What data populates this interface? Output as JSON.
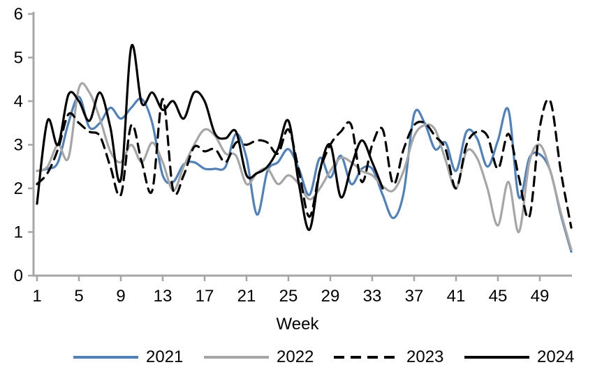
{
  "chart_data": {
    "type": "line",
    "title": "",
    "xlabel": "Week",
    "ylabel": "",
    "xlim": [
      1,
      52
    ],
    "ylim": [
      0,
      6
    ],
    "xticks": [
      1,
      5,
      9,
      13,
      17,
      21,
      25,
      29,
      33,
      37,
      41,
      45,
      49
    ],
    "yticks": [
      0,
      1,
      2,
      3,
      4,
      5,
      6
    ],
    "grid": false,
    "legend_position": "bottom",
    "axis_color": "#A6A6A6",
    "text_color": "#000000",
    "x": [
      1,
      2,
      3,
      4,
      5,
      6,
      7,
      8,
      9,
      10,
      11,
      12,
      13,
      14,
      15,
      16,
      17,
      18,
      19,
      20,
      21,
      22,
      23,
      24,
      25,
      26,
      27,
      28,
      29,
      30,
      31,
      32,
      33,
      34,
      35,
      36,
      37,
      38,
      39,
      40,
      41,
      42,
      43,
      44,
      45,
      46,
      47,
      48,
      49,
      50,
      51,
      52
    ],
    "series": [
      {
        "name": "2021",
        "color": "#4F81BD",
        "style": "solid",
        "values": [
          2.4,
          2.45,
          2.6,
          3.5,
          4.1,
          3.4,
          3.5,
          3.85,
          3.6,
          3.85,
          4.05,
          3.5,
          2.3,
          2.15,
          2.55,
          2.6,
          2.45,
          2.45,
          2.5,
          3.25,
          2.7,
          1.4,
          2.4,
          2.6,
          2.9,
          2.45,
          1.85,
          2.7,
          2.25,
          2.75,
          2.1,
          2.45,
          2.45,
          1.85,
          1.32,
          1.9,
          3.7,
          3.5,
          2.9,
          3.05,
          2.4,
          3.3,
          3.15,
          2.5,
          3.1,
          3.8,
          1.8,
          2.7,
          2.78,
          2.4,
          1.4,
          0.55
        ]
      },
      {
        "name": "2022",
        "color": "#A6A6A6",
        "style": "solid",
        "values": [
          2.4,
          2.5,
          3.0,
          2.7,
          4.3,
          4.2,
          3.6,
          2.85,
          2.6,
          3.0,
          2.6,
          3.05,
          2.6,
          1.95,
          2.5,
          3.0,
          3.35,
          3.2,
          2.8,
          2.75,
          2.1,
          2.35,
          2.45,
          2.1,
          2.3,
          2.1,
          1.75,
          2.0,
          2.4,
          2.7,
          2.6,
          2.4,
          2.3,
          2.05,
          1.95,
          2.4,
          3.2,
          3.45,
          3.35,
          2.65,
          2.0,
          2.85,
          2.7,
          2.0,
          1.15,
          2.15,
          1.0,
          2.6,
          3.0,
          2.4,
          1.45,
          0.6
        ]
      },
      {
        "name": "2023",
        "color": "#000000",
        "style": "dashed",
        "values": [
          2.1,
          2.35,
          2.9,
          3.7,
          3.5,
          3.3,
          3.2,
          2.5,
          1.85,
          3.45,
          2.6,
          1.95,
          4.05,
          1.95,
          2.3,
          2.95,
          2.85,
          2.9,
          2.6,
          3.05,
          3.0,
          3.1,
          3.05,
          2.8,
          3.35,
          2.4,
          1.35,
          2.4,
          3.0,
          3.3,
          3.45,
          2.15,
          3.0,
          3.35,
          2.1,
          2.9,
          3.45,
          3.5,
          3.2,
          2.9,
          2.0,
          3.0,
          3.3,
          3.2,
          2.45,
          3.25,
          2.25,
          1.35,
          3.4,
          4.0,
          2.4,
          1.1
        ]
      },
      {
        "name": "2024",
        "color": "#000000",
        "style": "solid",
        "values": [
          1.65,
          3.55,
          3.0,
          4.15,
          4.0,
          3.55,
          4.2,
          3.4,
          2.2,
          5.25,
          3.95,
          4.2,
          3.8,
          4.0,
          3.6,
          4.2,
          4.0,
          3.25,
          3.15,
          3.3,
          2.3,
          2.35,
          2.5,
          2.9,
          3.55,
          2.1,
          1.05,
          2.4,
          3.0,
          1.8,
          2.5,
          3.1,
          2.6,
          2.0
        ]
      }
    ]
  }
}
